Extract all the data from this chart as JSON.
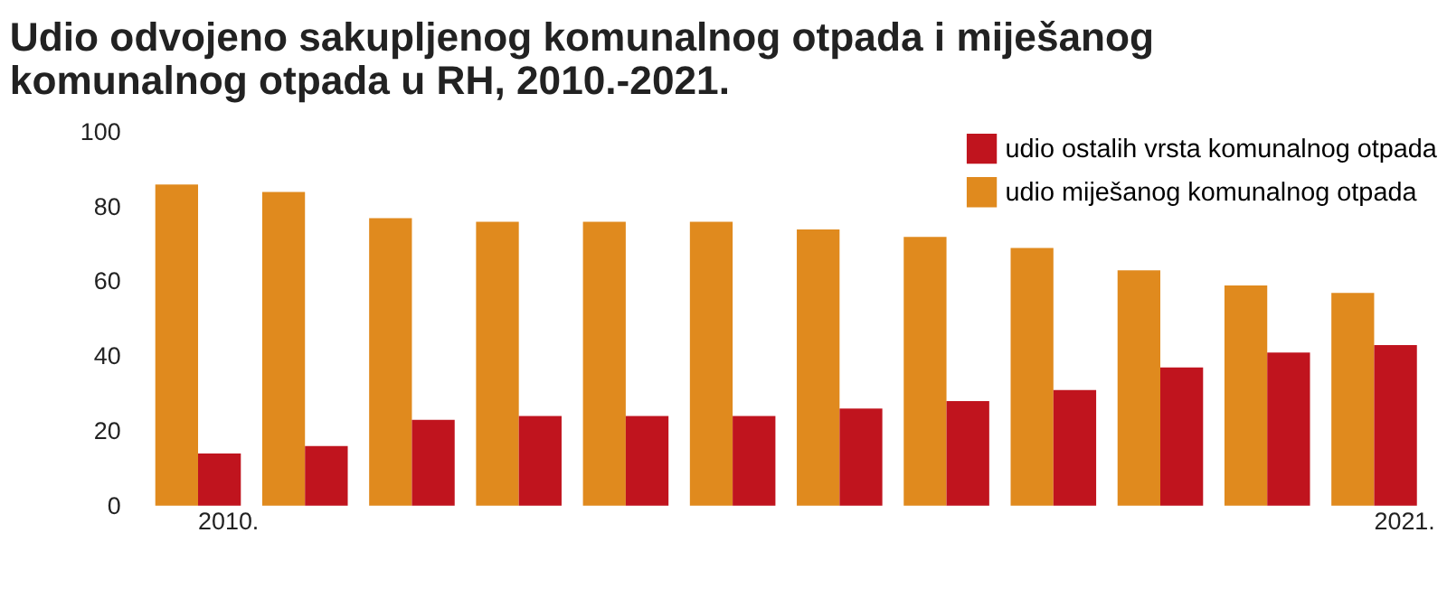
{
  "chart_data": {
    "type": "bar",
    "title": "Udio odvojeno sakupljenog komunalnog otpada i miješanog komunalnog otpada u RH, 2010.-2021.",
    "categories": [
      "2010.",
      null,
      null,
      null,
      null,
      null,
      null,
      null,
      null,
      null,
      null,
      "2021."
    ],
    "series": [
      {
        "name": "udio miješanog komunalnog otpada",
        "color": "#e08a1e",
        "values": [
          86,
          84,
          77,
          76,
          76,
          76,
          74,
          72,
          69,
          63,
          59,
          57
        ]
      },
      {
        "name": "udio ostalih vrsta komunalnog otpada",
        "color": "#c0141e",
        "values": [
          14,
          16,
          23,
          24,
          24,
          24,
          26,
          28,
          31,
          37,
          41,
          43
        ]
      }
    ],
    "ylim": [
      0,
      100
    ],
    "yticks": [
      0,
      20,
      40,
      60,
      80,
      100
    ],
    "grid": false,
    "legend": "top right"
  }
}
